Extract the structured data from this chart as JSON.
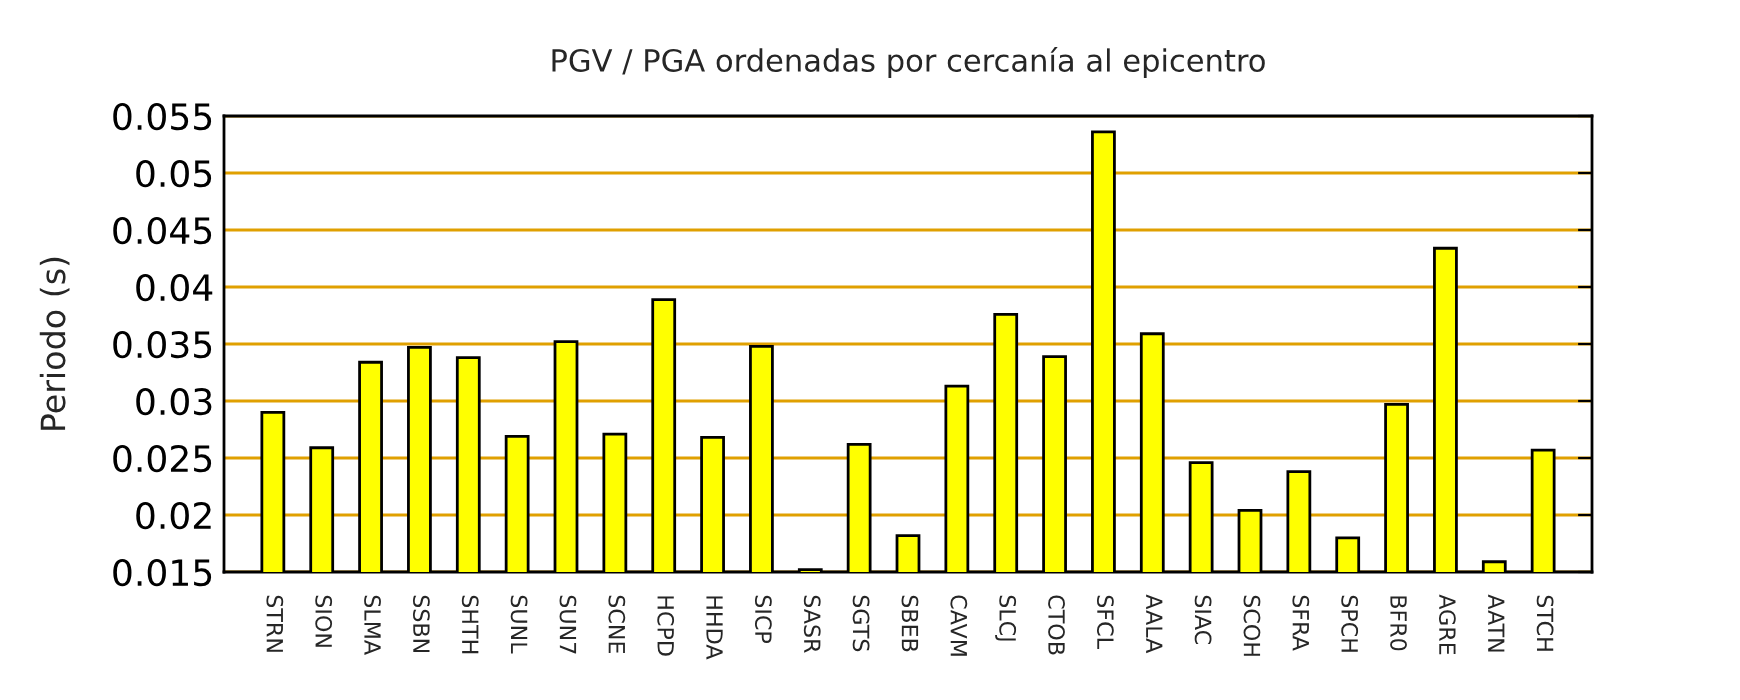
{
  "chart_data": {
    "type": "bar",
    "title": "PGV / PGA ordenadas por cercanía al epicentro",
    "ylabel": "Periodo (s)",
    "categories": [
      "STRN",
      "SION",
      "SLMA",
      "SSBN",
      "SHTH",
      "SUNL",
      "SUN7",
      "SCNE",
      "HCPD",
      "HHDA",
      "SICP",
      "SASR",
      "SGTS",
      "SBEB",
      "CAVM",
      "SLCJ",
      "CTOB",
      "SFCL",
      "AALA",
      "SIAC",
      "SCOH",
      "SFRA",
      "SPCH",
      "BFR0",
      "AGRE",
      "AATN",
      "STCH"
    ],
    "values": [
      0.029,
      0.0259,
      0.0334,
      0.0347,
      0.0338,
      0.0269,
      0.0352,
      0.0271,
      0.0389,
      0.0268,
      0.0348,
      0.0152,
      0.0262,
      0.0182,
      0.0313,
      0.0376,
      0.0339,
      0.0536,
      0.0359,
      0.0246,
      0.0204,
      0.0238,
      0.018,
      0.0297,
      0.0434,
      0.0159,
      0.0257
    ],
    "color": "#ffff00",
    "ylim": [
      0.015,
      0.055
    ],
    "yticks": [
      {
        "value": 0.015,
        "label": "0.015"
      },
      {
        "value": 0.02,
        "label": "0.02"
      },
      {
        "value": 0.025,
        "label": "0.025"
      },
      {
        "value": 0.03,
        "label": "0.03"
      },
      {
        "value": 0.035,
        "label": "0.035"
      },
      {
        "value": 0.04,
        "label": "0.04"
      },
      {
        "value": 0.045,
        "label": "0.045"
      },
      {
        "value": 0.05,
        "label": "0.05"
      },
      {
        "value": 0.055,
        "label": "0.055"
      }
    ],
    "grid": "y",
    "legend": false
  }
}
